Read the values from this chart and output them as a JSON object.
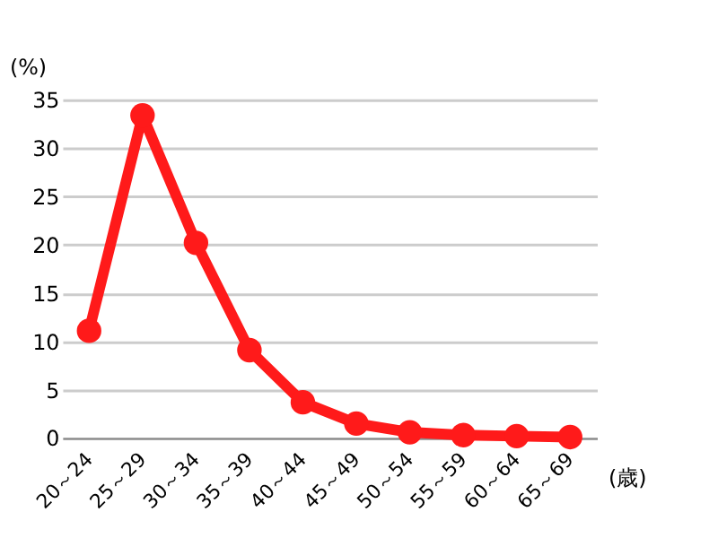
{
  "chart_data": {
    "type": "line",
    "xlabel": "(歳)",
    "ylabel": "(%)",
    "categories": [
      "20～24",
      "25～29",
      "30～34",
      "35～39",
      "40～44",
      "45～49",
      "50～54",
      "55～59",
      "60～64",
      "65～69"
    ],
    "series": [
      {
        "color": "#ff1a1a",
        "values": [
          11.1,
          33.4,
          20.2,
          9.1,
          3.7,
          1.5,
          0.6,
          0.3,
          0.2,
          0.1
        ]
      }
    ],
    "ylim": [
      0,
      35
    ],
    "yticks": [
      0,
      5,
      10,
      15,
      20,
      25,
      30,
      35
    ],
    "grid": "y",
    "marker": "circle",
    "line_style": "solid"
  }
}
